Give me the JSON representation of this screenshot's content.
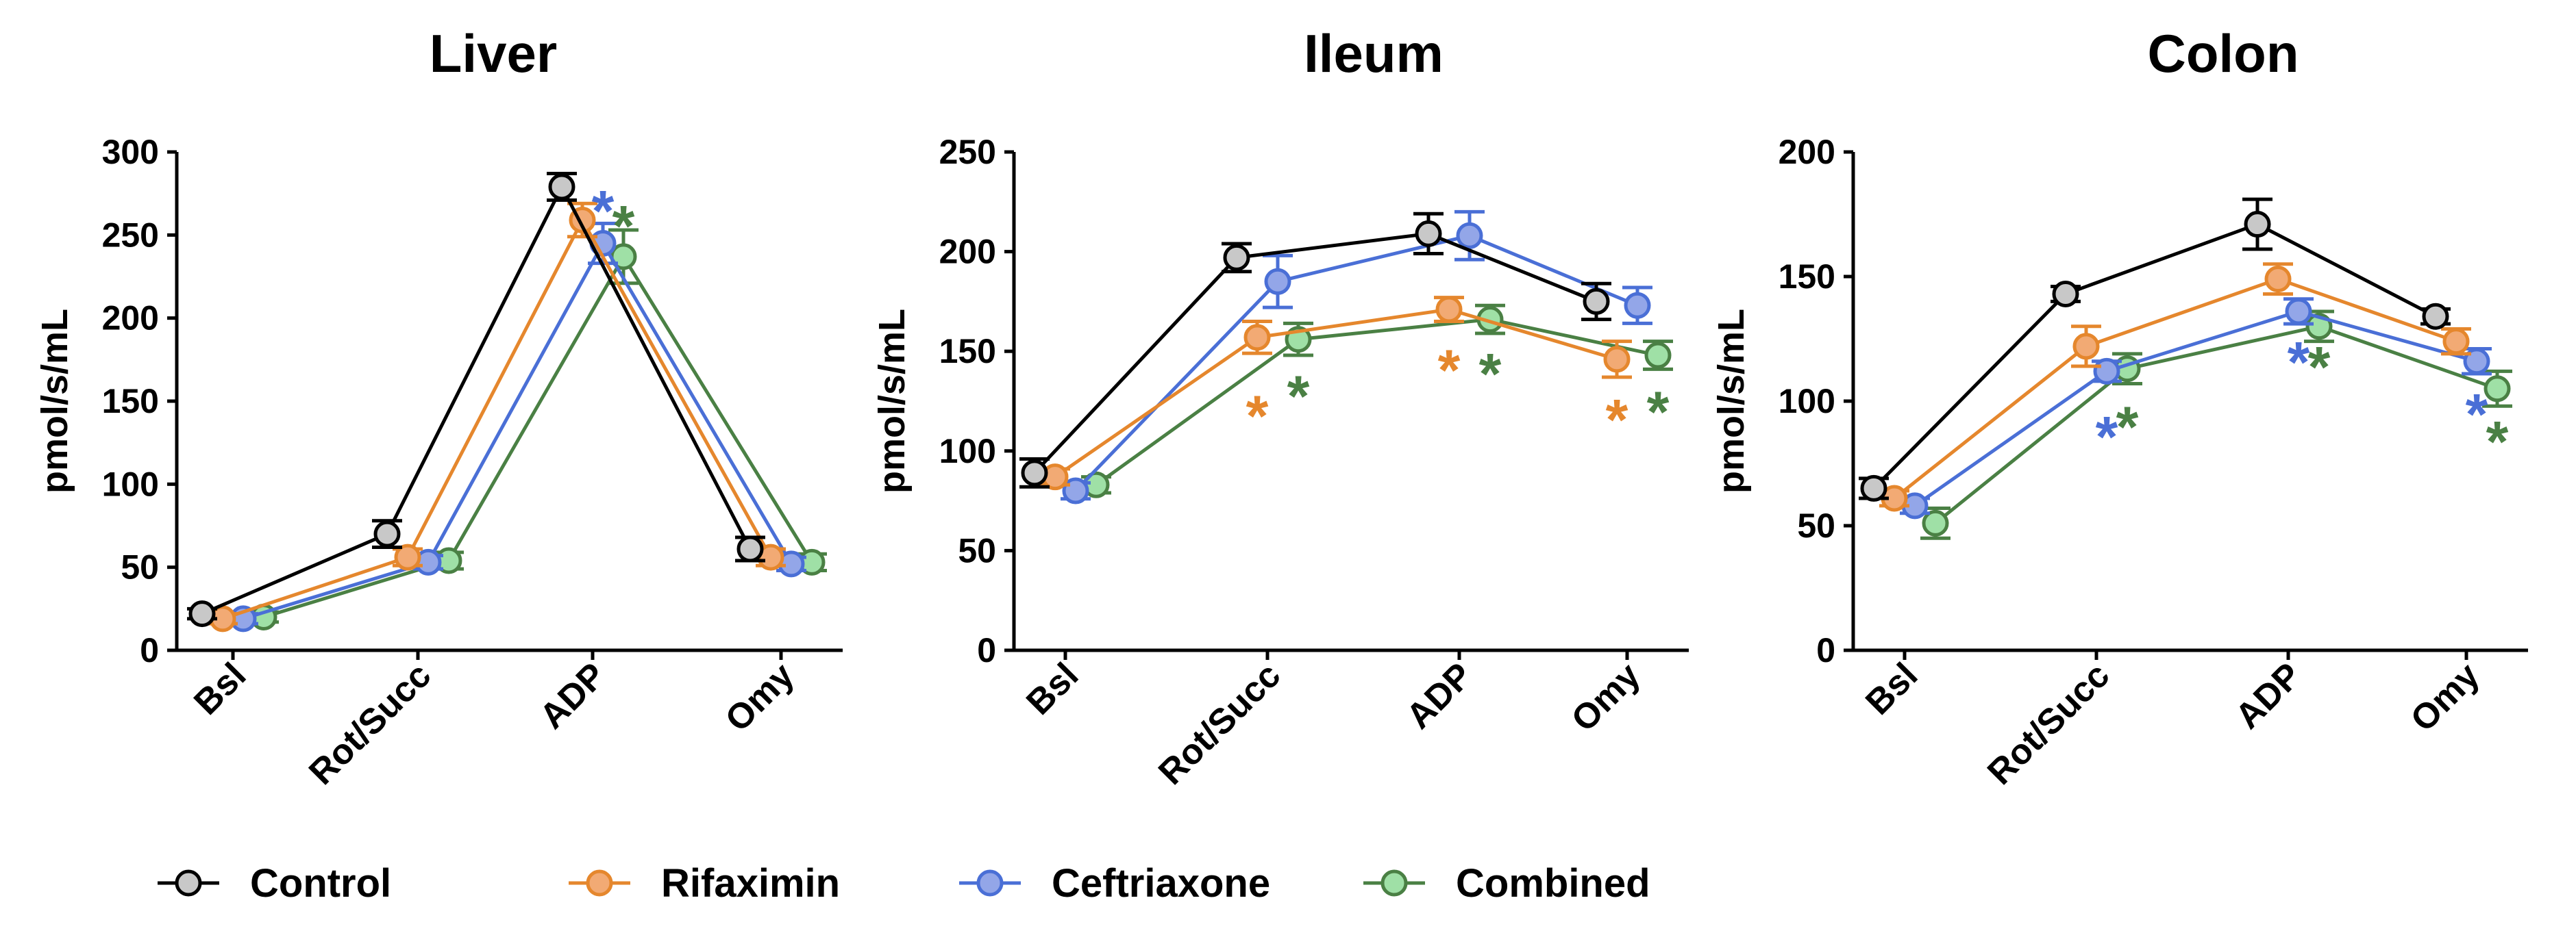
{
  "colors": {
    "Control": {
      "line": "#000000",
      "fill": "#c8c8c8"
    },
    "Rifaximin": {
      "line": "#e5872d",
      "fill": "#f2aa74"
    },
    "Ceftriaxone": {
      "line": "#4a6fd6",
      "fill": "#93a6e8"
    },
    "Combined": {
      "line": "#4a8044",
      "fill": "#9fe0a6"
    }
  },
  "legend": [
    "Control",
    "Rifaximin",
    "Ceftriaxone",
    "Combined"
  ],
  "chart_data": [
    {
      "type": "line",
      "title": "Liver",
      "ylabel": "pmol/s/mL",
      "categories": [
        "Bsl",
        "Rot/Succ",
        "ADP",
        "Omy"
      ],
      "ylim": [
        0,
        300
      ],
      "yticks": [
        0,
        50,
        100,
        150,
        200,
        250,
        300
      ],
      "series": [
        {
          "name": "Control",
          "values": [
            22,
            70,
            279,
            61
          ],
          "errors": [
            3,
            8,
            8,
            7
          ]
        },
        {
          "name": "Rifaximin",
          "values": [
            19,
            56,
            259,
            56
          ],
          "errors": [
            3,
            5,
            10,
            5
          ]
        },
        {
          "name": "Ceftriaxone",
          "values": [
            19,
            53,
            245,
            52
          ],
          "errors": [
            3,
            4,
            12,
            4
          ]
        },
        {
          "name": "Combined",
          "values": [
            20,
            54,
            237,
            53
          ],
          "errors": [
            3,
            5,
            16,
            5
          ]
        }
      ],
      "annotations": [
        {
          "text": "*",
          "series": "Ceftriaxone",
          "category": "ADP",
          "y": 265
        },
        {
          "text": "*",
          "series": "Combined",
          "category": "ADP",
          "y": 256
        }
      ]
    },
    {
      "type": "line",
      "title": "Ileum",
      "ylabel": "pmol/s/mL",
      "categories": [
        "Bsl",
        "Rot/Succ",
        "ADP",
        "Omy"
      ],
      "ylim": [
        0,
        250
      ],
      "yticks": [
        0,
        50,
        100,
        150,
        200,
        250
      ],
      "series": [
        {
          "name": "Control",
          "values": [
            89,
            197,
            209,
            175
          ],
          "errors": [
            7,
            7,
            10,
            9
          ]
        },
        {
          "name": "Rifaximin",
          "values": [
            87,
            157,
            171,
            146
          ],
          "errors": [
            4,
            8,
            6,
            9
          ]
        },
        {
          "name": "Ceftriaxone",
          "values": [
            80,
            185,
            208,
            173
          ],
          "errors": [
            4,
            13,
            12,
            9
          ]
        },
        {
          "name": "Combined",
          "values": [
            83,
            156,
            166,
            148
          ],
          "errors": [
            4,
            8,
            7,
            7
          ]
        }
      ],
      "annotations": [
        {
          "text": "*",
          "series": "Rifaximin",
          "category": "Rot/Succ",
          "y": 118
        },
        {
          "text": "*",
          "series": "Combined",
          "category": "Rot/Succ",
          "y": 128
        },
        {
          "text": "*",
          "series": "Rifaximin",
          "category": "ADP",
          "y": 141
        },
        {
          "text": "*",
          "series": "Combined",
          "category": "ADP",
          "y": 139
        },
        {
          "text": "*",
          "series": "Rifaximin",
          "category": "Omy",
          "y": 116
        },
        {
          "text": "*",
          "series": "Combined",
          "category": "Omy",
          "y": 120
        }
      ]
    },
    {
      "type": "line",
      "title": "Colon",
      "ylabel": "pmol/s/mL",
      "categories": [
        "Bsl",
        "Rot/Succ",
        "ADP",
        "Omy"
      ],
      "ylim": [
        0,
        200
      ],
      "yticks": [
        0,
        50,
        100,
        150,
        200
      ],
      "series": [
        {
          "name": "Control",
          "values": [
            65,
            143,
            171,
            134
          ],
          "errors": [
            4,
            3,
            10,
            3
          ]
        },
        {
          "name": "Rifaximin",
          "values": [
            61,
            122,
            149,
            124
          ],
          "errors": [
            3,
            8,
            6,
            5
          ]
        },
        {
          "name": "Ceftriaxone",
          "values": [
            58,
            112,
            136,
            116
          ],
          "errors": [
            3,
            4,
            5,
            5
          ]
        },
        {
          "name": "Combined",
          "values": [
            51,
            113,
            130,
            105
          ],
          "errors": [
            6,
            6,
            6,
            7
          ]
        }
      ],
      "annotations": [
        {
          "text": "*",
          "series": "Ceftriaxone",
          "category": "Rot/Succ",
          "y": 86
        },
        {
          "text": "*",
          "series": "Combined",
          "category": "Rot/Succ",
          "y": 90
        },
        {
          "text": "*",
          "series": "Ceftriaxone",
          "category": "ADP",
          "y": 116
        },
        {
          "text": "*",
          "series": "Combined",
          "category": "ADP",
          "y": 114
        },
        {
          "text": "*",
          "series": "Ceftriaxone",
          "category": "Omy",
          "y": 95
        },
        {
          "text": "*",
          "series": "Combined",
          "category": "Omy",
          "y": 84
        }
      ]
    }
  ]
}
